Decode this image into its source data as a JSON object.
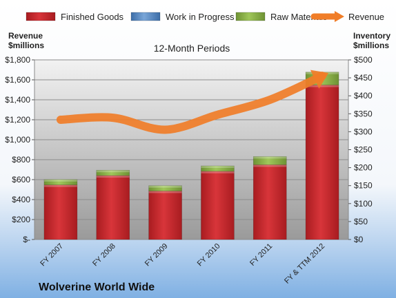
{
  "chart_data": {
    "type": "bar",
    "title": "12-Month Periods",
    "company": "Wolverine World Wide",
    "y_left_label": [
      "Revenue",
      "$millions"
    ],
    "y_right_label": [
      "Inventory",
      "$millions"
    ],
    "categories": [
      "FY 2007",
      "FY 2008",
      "FY 2009",
      "FY 2010",
      "FY 2011",
      "FY & TTM 2012"
    ],
    "stacked": true,
    "series": [
      {
        "name": "Finished Goods",
        "axis": "right",
        "kind": "bar",
        "color": "#c9262b",
        "values": [
          152,
          178,
          135,
          190,
          208,
          430
        ]
      },
      {
        "name": "Work in Progress",
        "axis": "right",
        "kind": "bar",
        "color": "#4f81bd",
        "values": [
          0,
          0,
          0,
          0,
          0,
          0
        ]
      },
      {
        "name": "Raw Materials",
        "axis": "right",
        "kind": "bar",
        "color": "#8db44a",
        "values": [
          15,
          15,
          15,
          15,
          23,
          36
        ]
      },
      {
        "name": "Revenue",
        "axis": "left",
        "kind": "line",
        "color": "#f07d28",
        "values": [
          1200,
          1220,
          1100,
          1250,
          1400,
          1640
        ]
      }
    ],
    "y_left": {
      "min": 0,
      "max": 1800,
      "ticks": [
        0,
        200,
        400,
        600,
        800,
        1000,
        1200,
        1400,
        1600,
        1800
      ],
      "tick_labels": [
        "$-",
        "$200",
        "$400",
        "$600",
        "$800",
        "$1,000",
        "$1,200",
        "$1,400",
        "$1,600",
        "$1,800"
      ]
    },
    "y_right": {
      "min": 0,
      "max": 500,
      "ticks": [
        0,
        50,
        100,
        150,
        200,
        250,
        300,
        350,
        400,
        450,
        500
      ],
      "tick_labels": [
        "$0",
        "$50",
        "$100",
        "$150",
        "$200",
        "$250",
        "$300",
        "$350",
        "$400",
        "$450",
        "$500"
      ]
    },
    "grid": true,
    "legend": "top"
  }
}
